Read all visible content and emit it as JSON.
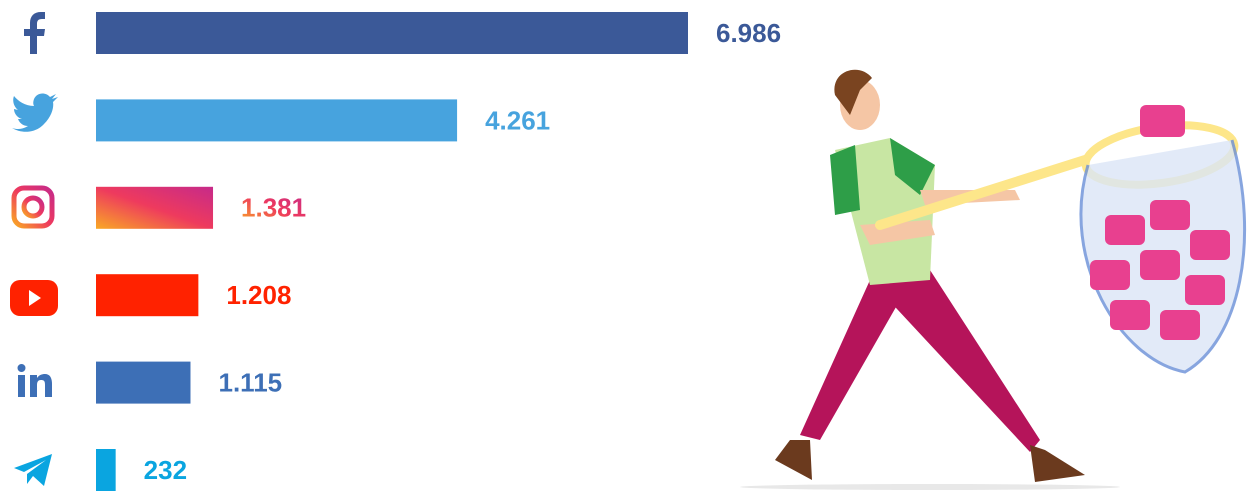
{
  "chart_data": {
    "type": "bar",
    "orientation": "horizontal",
    "categories": [
      null,
      null,
      null,
      null,
      null,
      null
    ],
    "values": [
      6986,
      4261,
      1381,
      1208,
      1115,
      232
    ],
    "value_labels": [
      "6.986",
      "4.261",
      "1.381",
      "1.208",
      "1.115",
      "232"
    ],
    "colors": [
      "#3b5998",
      "#47a3de",
      "#dd2a7b",
      "#ff2200",
      "#3d6fb6",
      "#0aa5e0"
    ]
  }
}
